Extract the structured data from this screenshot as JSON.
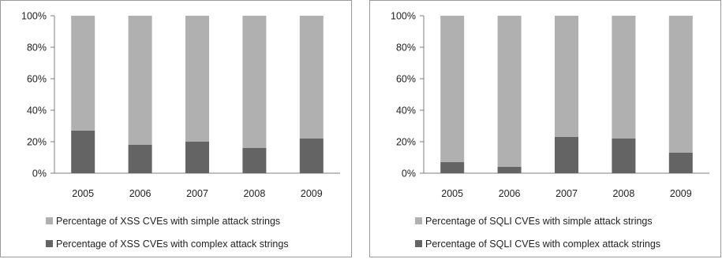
{
  "chart_data": [
    {
      "type": "bar",
      "stacked": true,
      "percent": true,
      "categories": [
        "2005",
        "2006",
        "2007",
        "2008",
        "2009"
      ],
      "ylim": [
        0,
        100
      ],
      "yticks": [
        "0%",
        "20%",
        "40%",
        "60%",
        "80%",
        "100%"
      ],
      "series": [
        {
          "name": "Percentage of XSS CVEs with complex attack strings",
          "color": "#646464",
          "values": [
            27,
            18,
            20,
            16,
            22
          ]
        },
        {
          "name": "Percentage of XSS CVEs with simple attack strings",
          "color": "#b0b0b0",
          "values": [
            73,
            82,
            80,
            84,
            78
          ]
        }
      ],
      "legend_position": "bottom"
    },
    {
      "type": "bar",
      "stacked": true,
      "percent": true,
      "categories": [
        "2005",
        "2006",
        "2007",
        "2008",
        "2009"
      ],
      "ylim": [
        0,
        100
      ],
      "yticks": [
        "0%",
        "20%",
        "40%",
        "60%",
        "80%",
        "100%"
      ],
      "series": [
        {
          "name": "Percentage of SQLI CVEs with complex attack strings",
          "color": "#646464",
          "values": [
            7,
            4,
            23,
            22,
            13
          ]
        },
        {
          "name": "Percentage of SQLI CVEs with simple attack strings",
          "color": "#b0b0b0",
          "values": [
            93,
            96,
            77,
            78,
            87
          ]
        }
      ],
      "legend_position": "bottom"
    }
  ]
}
